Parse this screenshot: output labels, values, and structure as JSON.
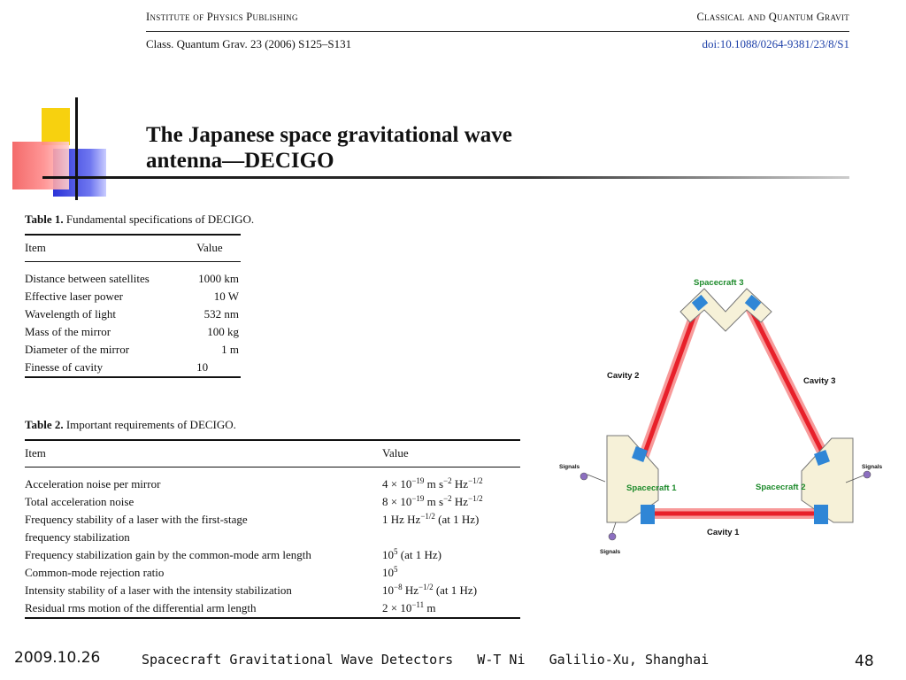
{
  "journal": {
    "publisher": "Institute of Physics Publishing",
    "journal_name": "Classical and Quantum Gravit",
    "citation": "Class. Quantum Grav. 23 (2006) S125–S131",
    "doi": "doi:10.1088/0264-9381/23/8/S1"
  },
  "title": {
    "line1": "The Japanese space gravitational wave",
    "line2": "antenna—DECIGO"
  },
  "table1": {
    "caption_label": "Table 1.",
    "caption_text": "Fundamental specifications of DECIGO.",
    "headers": [
      "Item",
      "Value"
    ],
    "rows": [
      [
        "Distance between satellites",
        "1000 km"
      ],
      [
        "Effective laser power",
        "10 W"
      ],
      [
        "Wavelength of light",
        "532 nm"
      ],
      [
        "Mass of the mirror",
        "100 kg"
      ],
      [
        "Diameter of the mirror",
        "1 m"
      ],
      [
        "Finesse of cavity",
        "10"
      ]
    ]
  },
  "table2": {
    "caption_label": "Table 2.",
    "caption_text": "Important requirements of DECIGO.",
    "headers": [
      "Item",
      "Value"
    ],
    "rows": [
      {
        "item": "Acceleration noise per mirror",
        "value": "4 × 10^-19 m s^-2 Hz^-1/2"
      },
      {
        "item": "Total acceleration noise",
        "value": "8 × 10^-19 m s^-2 Hz^-1/2"
      },
      {
        "item": "Frequency stability of a laser with the first-stage",
        "value": "1 Hz Hz^-1/2 (at 1 Hz)"
      },
      {
        "item": "frequency stabilization",
        "value": ""
      },
      {
        "item": "Frequency stabilization gain by the common-mode arm length",
        "value": "10^5 (at 1 Hz)"
      },
      {
        "item": "Common-mode rejection ratio",
        "value": "10^5"
      },
      {
        "item": "Intensity stability of a laser with the intensity stabilization",
        "value": "10^-8 Hz^-1/2 (at 1 Hz)"
      },
      {
        "item": "Residual rms motion of the differential arm length",
        "value": "2 × 10^-11 m"
      }
    ]
  },
  "diagram": {
    "spacecraft_1": "Spacecraft 1",
    "spacecraft_2": "Spacecraft 2",
    "spacecraft_3": "Spacecraft 3",
    "cavity_1": "Cavity 1",
    "cavity_2": "Cavity 2",
    "cavity_3": "Cavity 3",
    "signals": "Signals",
    "colors": {
      "beam": "#e8202a",
      "label_green": "#1c8a2a",
      "mirror": "#2f86d6",
      "housing": "#f6f1d8"
    }
  },
  "footer": {
    "date": "2009.10.26",
    "text": "Spacecraft Gravitational Wave Detectors   W-T Ni   Galilio-Xu, Shanghai",
    "page": "48"
  }
}
